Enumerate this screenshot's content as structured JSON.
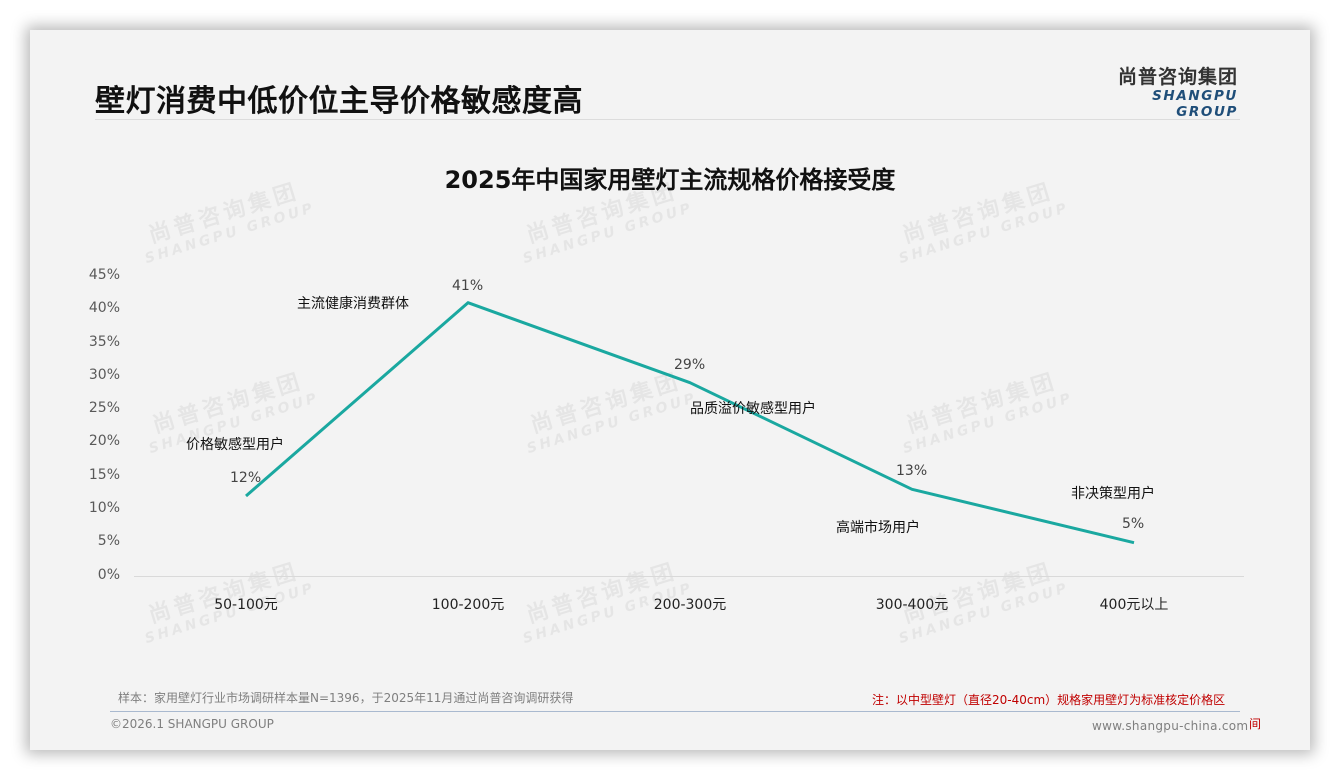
{
  "header": {
    "page_title": "壁灯消费中低价位主导价格敏感度高",
    "logo_cn": "尚普咨询集团",
    "logo_en": "SHANGPU GROUP"
  },
  "watermark": {
    "cn": "尚普咨询集团",
    "en": "SHANGPU GROUP"
  },
  "colors": {
    "line": "#1aa8a0",
    "note_red": "#c00000",
    "logo_blue": "#1f4e79"
  },
  "chart_data": {
    "type": "line",
    "title": "2025年中国家用壁灯主流规格价格接受度",
    "categories": [
      "50-100元",
      "100-200元",
      "200-300元",
      "300-400元",
      "400元以上"
    ],
    "values": [
      12,
      41,
      29,
      13,
      5
    ],
    "value_labels": [
      "12%",
      "41%",
      "29%",
      "13%",
      "5%"
    ],
    "annotations": [
      "价格敏感型用户",
      "主流健康消费群体",
      "品质溢价敏感型用户",
      "高端市场用户",
      "非决策型用户"
    ],
    "y_ticks": [
      "45%",
      "40%",
      "35%",
      "30%",
      "25%",
      "20%",
      "15%",
      "10%",
      "5%",
      "0%"
    ],
    "ylim": [
      0,
      45
    ],
    "xlabel": "",
    "ylabel": "",
    "grid": false,
    "legend": "none"
  },
  "footer": {
    "source": "样本：家用壁灯行业市场调研样本量N=1396，于2025年11月通过尚普咨询调研获得",
    "note": "注：以中型壁灯（直径20-40cm）规格家用壁灯为标准核定价格区",
    "note_cont": "间",
    "copyright": "©2026.1 SHANGPU GROUP",
    "website": "www.shangpu-china.com"
  }
}
